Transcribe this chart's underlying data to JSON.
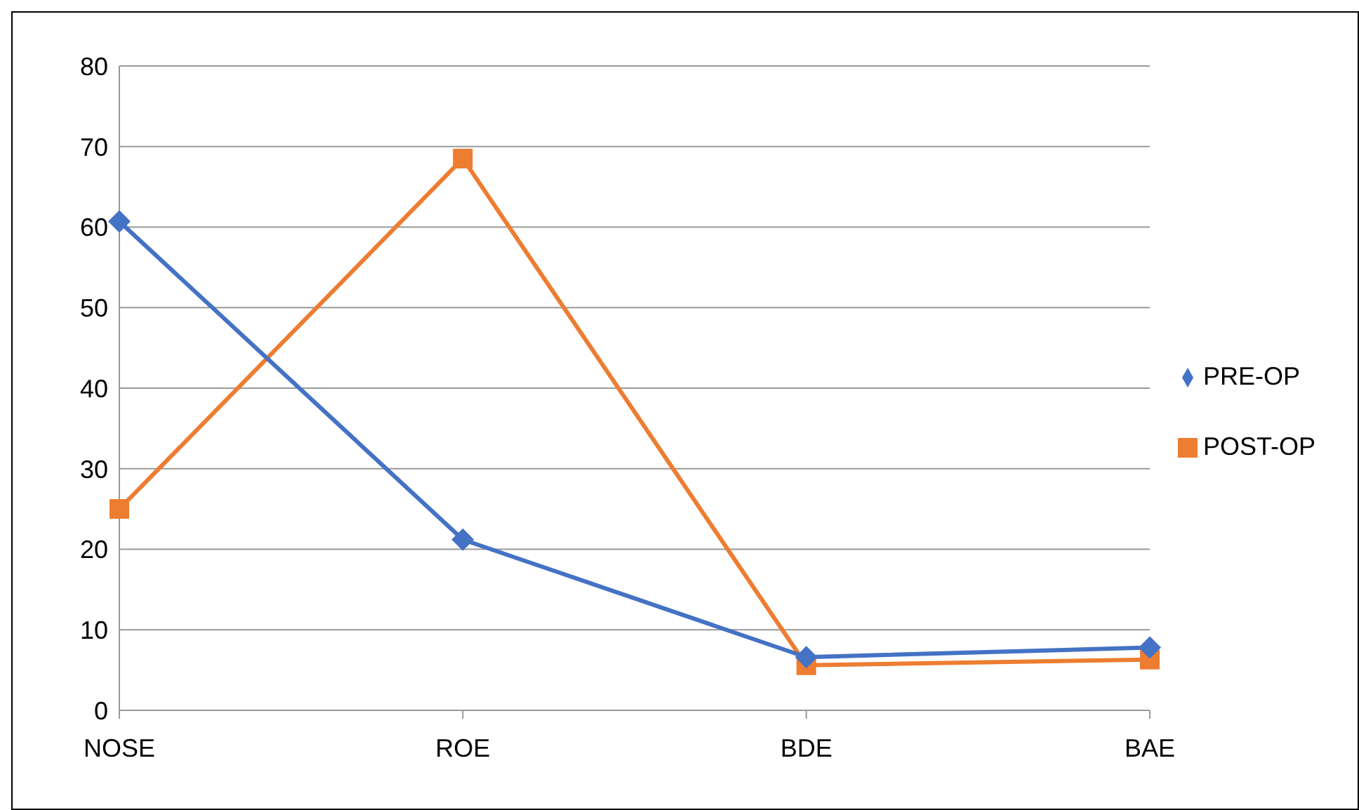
{
  "chart_data": {
    "type": "line",
    "categories": [
      "NOSE",
      "ROE",
      "BDE",
      "BAE"
    ],
    "series": [
      {
        "name": "PRE-OP",
        "color": "#4472c4",
        "marker": "diamond",
        "values": [
          60.7,
          21.2,
          6.6,
          7.8
        ]
      },
      {
        "name": "POST-OP",
        "color": "#ed7d31",
        "marker": "square",
        "values": [
          25,
          68.5,
          5.6,
          6.3
        ]
      }
    ],
    "ylim": [
      0,
      80
    ],
    "yticks": [
      0,
      10,
      20,
      30,
      40,
      50,
      60,
      70,
      80
    ],
    "grid": "y",
    "legend": "right"
  }
}
